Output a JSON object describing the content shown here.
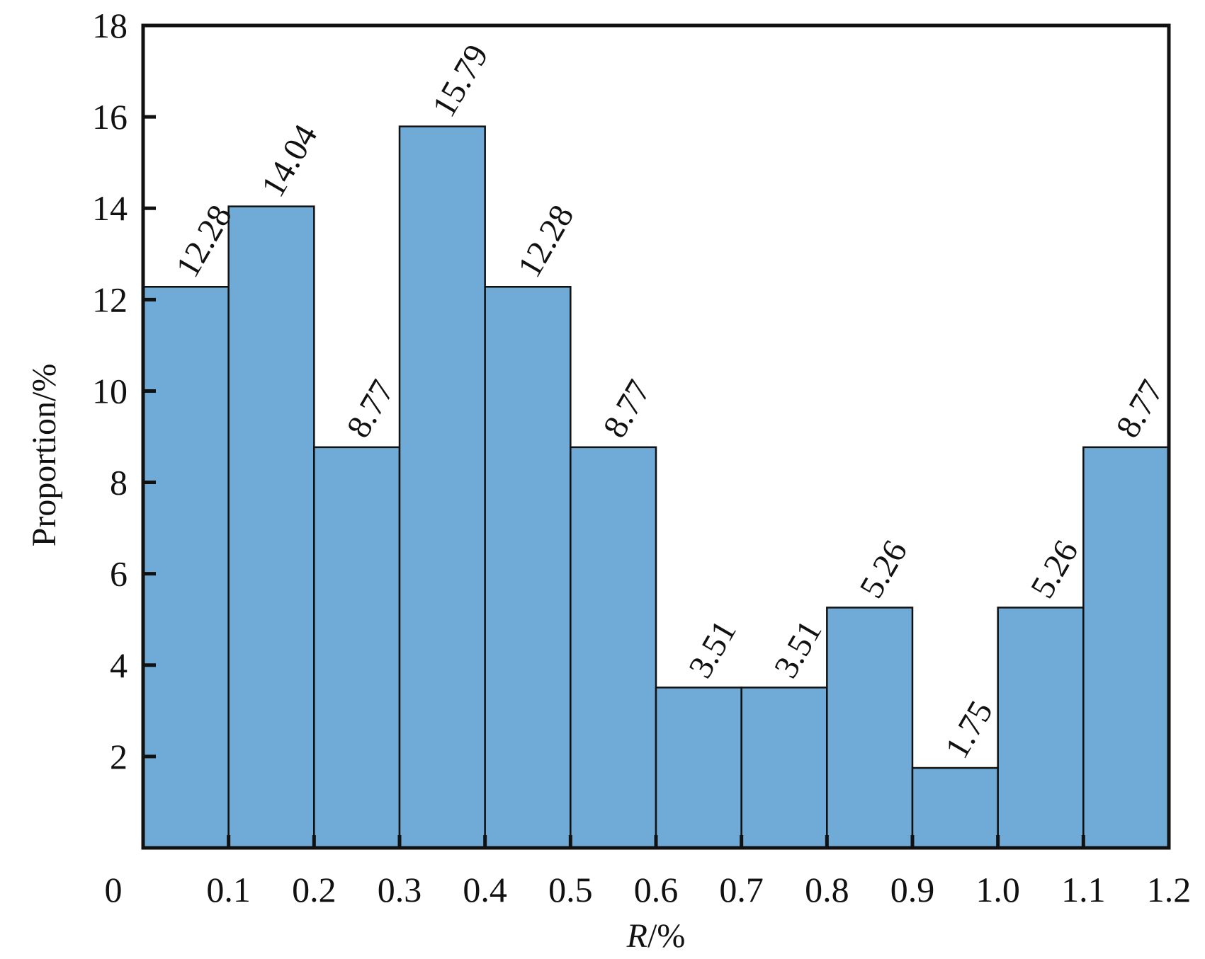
{
  "chart_data": {
    "type": "bar",
    "title": "",
    "xlabel_italic": "R",
    "xlabel_rest": "/%",
    "ylabel": "Proportion/%",
    "x_ticks": [
      "0",
      "0.1",
      "0.2",
      "0.3",
      "0.4",
      "0.5",
      "0.6",
      "0.7",
      "0.8",
      "0.9",
      "1.0",
      "1.1",
      "1.2"
    ],
    "y_ticks": [
      "2",
      "4",
      "6",
      "8",
      "10",
      "12",
      "14",
      "16",
      "18"
    ],
    "xlim": [
      0,
      1.2
    ],
    "ylim": [
      0,
      18
    ],
    "bin_edges": [
      0,
      0.1,
      0.2,
      0.3,
      0.4,
      0.5,
      0.6,
      0.7,
      0.8,
      0.9,
      1.0,
      1.1,
      1.2
    ],
    "values": [
      12.28,
      14.04,
      8.77,
      15.79,
      12.28,
      8.77,
      3.51,
      3.51,
      5.26,
      1.75,
      5.26,
      8.77
    ],
    "value_labels": [
      "12.28",
      "14.04",
      "8.77",
      "15.79",
      "12.28",
      "8.77",
      "3.51",
      "3.51",
      "5.26",
      "1.75",
      "5.26",
      "8.77"
    ],
    "grid": false,
    "legend": "none",
    "bar_color": "#6fabd6",
    "edge_color": "#111111"
  }
}
